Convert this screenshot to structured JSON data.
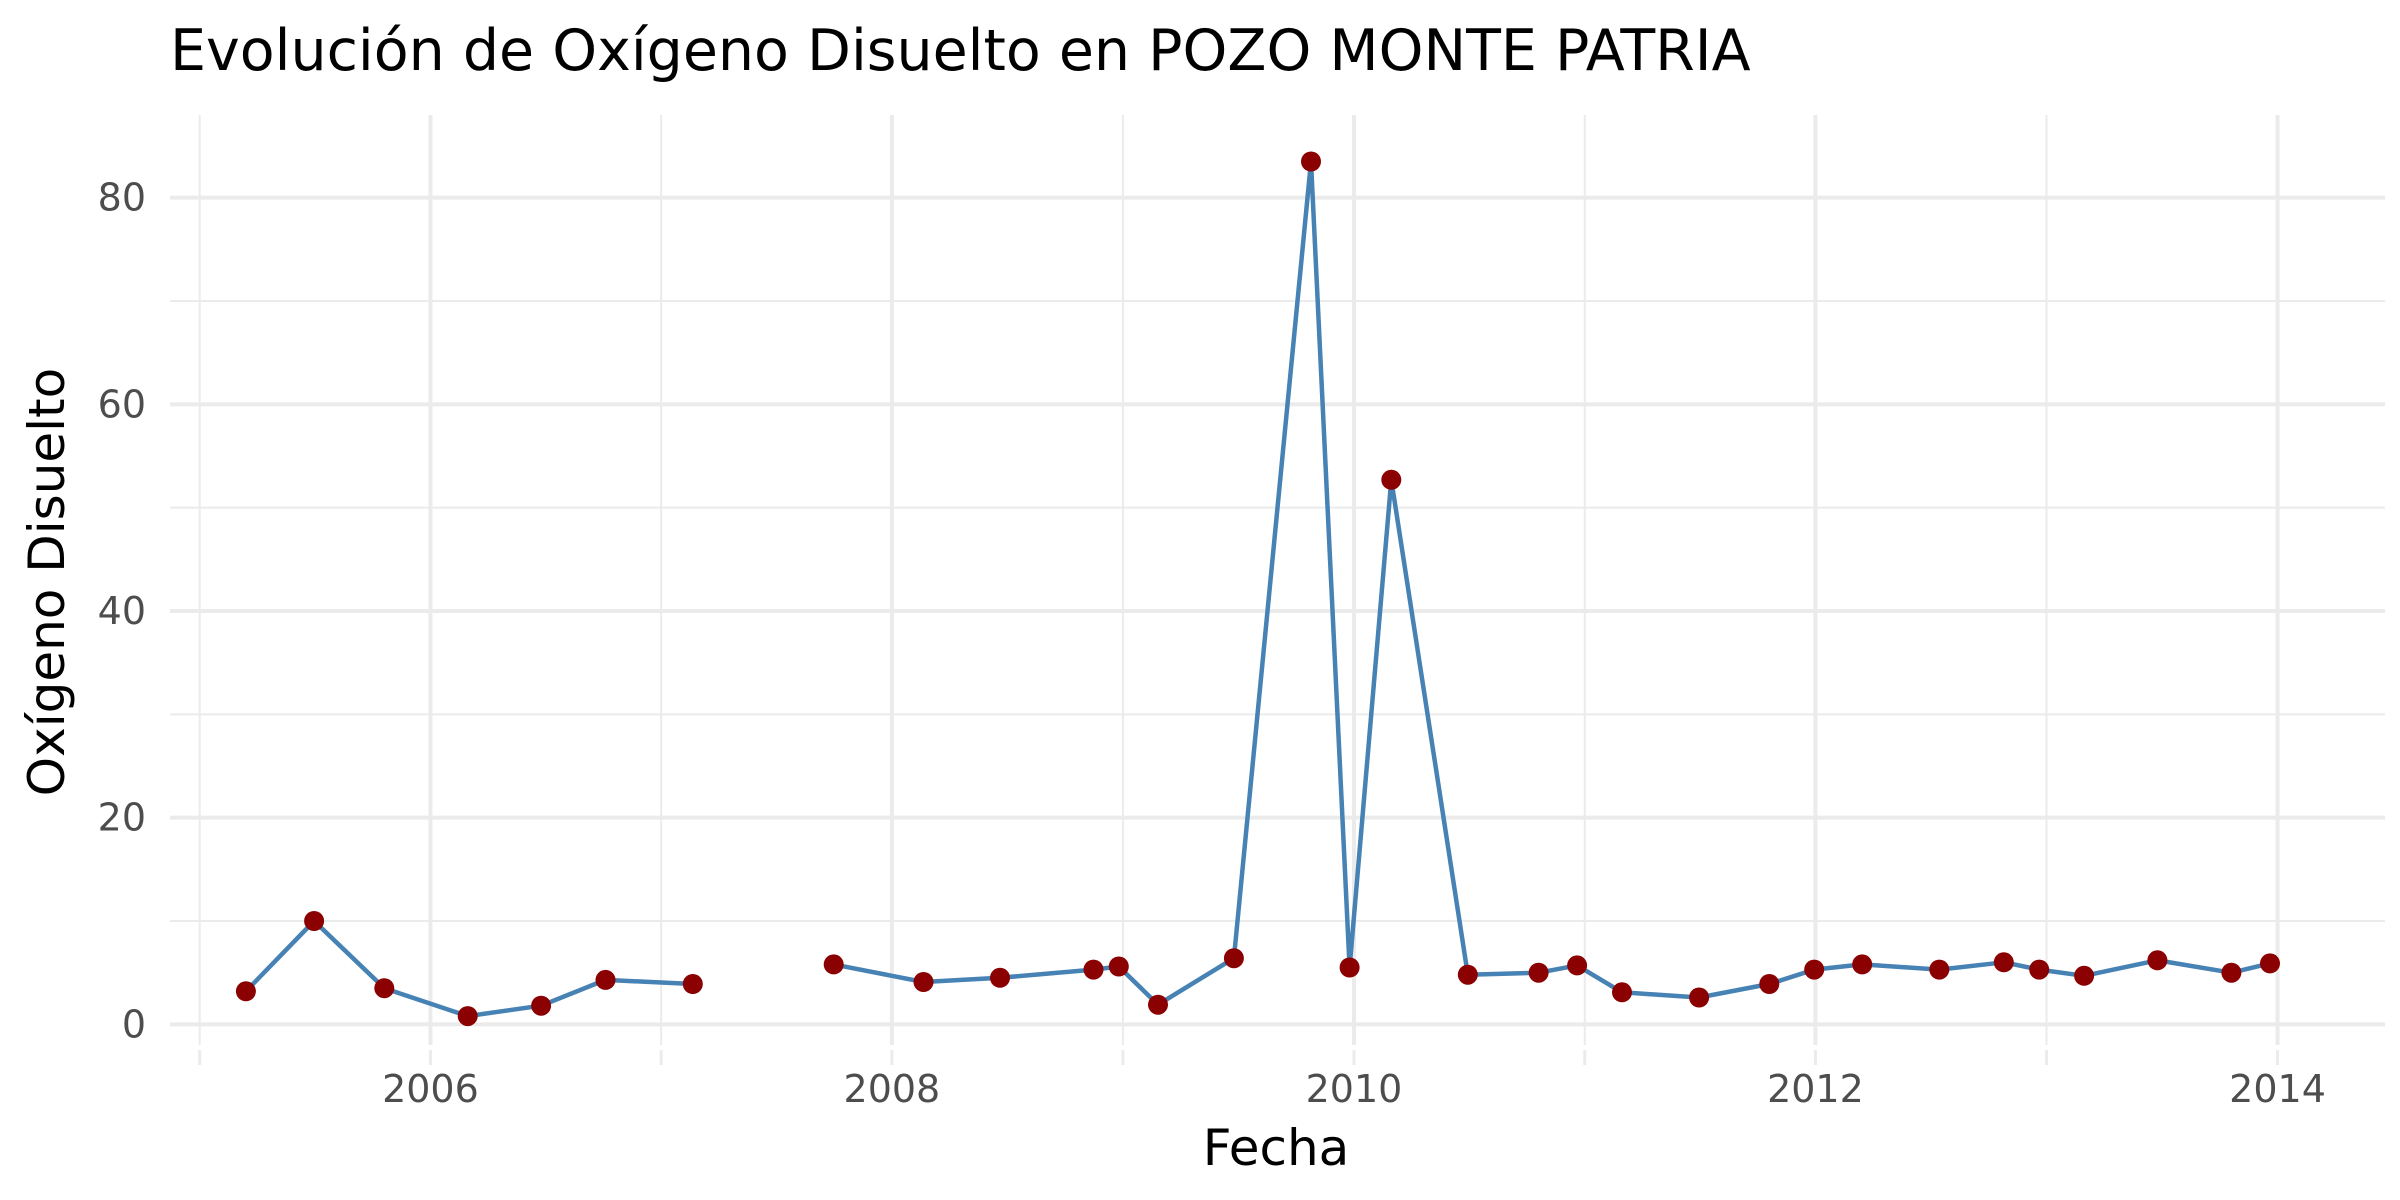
{
  "chart_data": {
    "type": "line",
    "title": "Evolución de Oxígeno Disuelto en POZO MONTE PATRIA",
    "xlabel": "Fecha",
    "ylabel": "Oxígeno Disuelto",
    "x_axis": {
      "kind": "date",
      "range": [
        "2004-11-15",
        "2014-06-20"
      ],
      "ticks": [
        "2006-01-01",
        "2008-01-01",
        "2010-01-01",
        "2012-01-01",
        "2014-01-01"
      ],
      "tick_labels": [
        "2006",
        "2008",
        "2010",
        "2012",
        "2014"
      ]
    },
    "y_axis": {
      "range": [
        -2,
        88
      ],
      "ticks": [
        0,
        20,
        40,
        60,
        80
      ],
      "tick_labels": [
        "0",
        "20",
        "40",
        "60",
        "80"
      ]
    },
    "grid": true,
    "line_color": "#4682B4",
    "point_color": "#8B0000",
    "segments": [
      [
        {
          "x": "2005-03-15",
          "y": 3.2
        },
        {
          "x": "2005-07-01",
          "y": 10.0
        },
        {
          "x": "2005-10-20",
          "y": 3.5
        },
        {
          "x": "2006-03-01",
          "y": 0.8
        },
        {
          "x": "2006-06-25",
          "y": 1.8
        },
        {
          "x": "2006-10-05",
          "y": 4.3
        },
        {
          "x": "2007-02-20",
          "y": 3.9
        }
      ],
      [
        {
          "x": "2007-10-01",
          "y": 5.8
        },
        {
          "x": "2008-02-20",
          "y": 4.1
        },
        {
          "x": "2008-06-20",
          "y": 4.5
        },
        {
          "x": "2008-11-15",
          "y": 5.3
        },
        {
          "x": "2008-12-25",
          "y": 5.6
        },
        {
          "x": "2009-02-25",
          "y": 1.9
        },
        {
          "x": "2009-06-25",
          "y": 6.4
        },
        {
          "x": "2009-10-25",
          "y": 83.5
        },
        {
          "x": "2009-12-25",
          "y": 5.5
        },
        {
          "x": "2010-03-01",
          "y": 52.7
        },
        {
          "x": "2010-06-30",
          "y": 4.8
        },
        {
          "x": "2010-10-20",
          "y": 5.0
        },
        {
          "x": "2010-12-20",
          "y": 5.7
        },
        {
          "x": "2011-03-01",
          "y": 3.1
        },
        {
          "x": "2011-07-01",
          "y": 2.6
        },
        {
          "x": "2011-10-20",
          "y": 3.9
        },
        {
          "x": "2011-12-30",
          "y": 5.3
        },
        {
          "x": "2012-03-15",
          "y": 5.8
        },
        {
          "x": "2012-07-15",
          "y": 5.3
        },
        {
          "x": "2012-10-25",
          "y": 6.0
        },
        {
          "x": "2012-12-20",
          "y": 5.3
        },
        {
          "x": "2013-03-01",
          "y": 4.7
        },
        {
          "x": "2013-06-25",
          "y": 6.2
        },
        {
          "x": "2013-10-20",
          "y": 5.0
        },
        {
          "x": "2013-12-20",
          "y": 5.9
        }
      ]
    ]
  }
}
